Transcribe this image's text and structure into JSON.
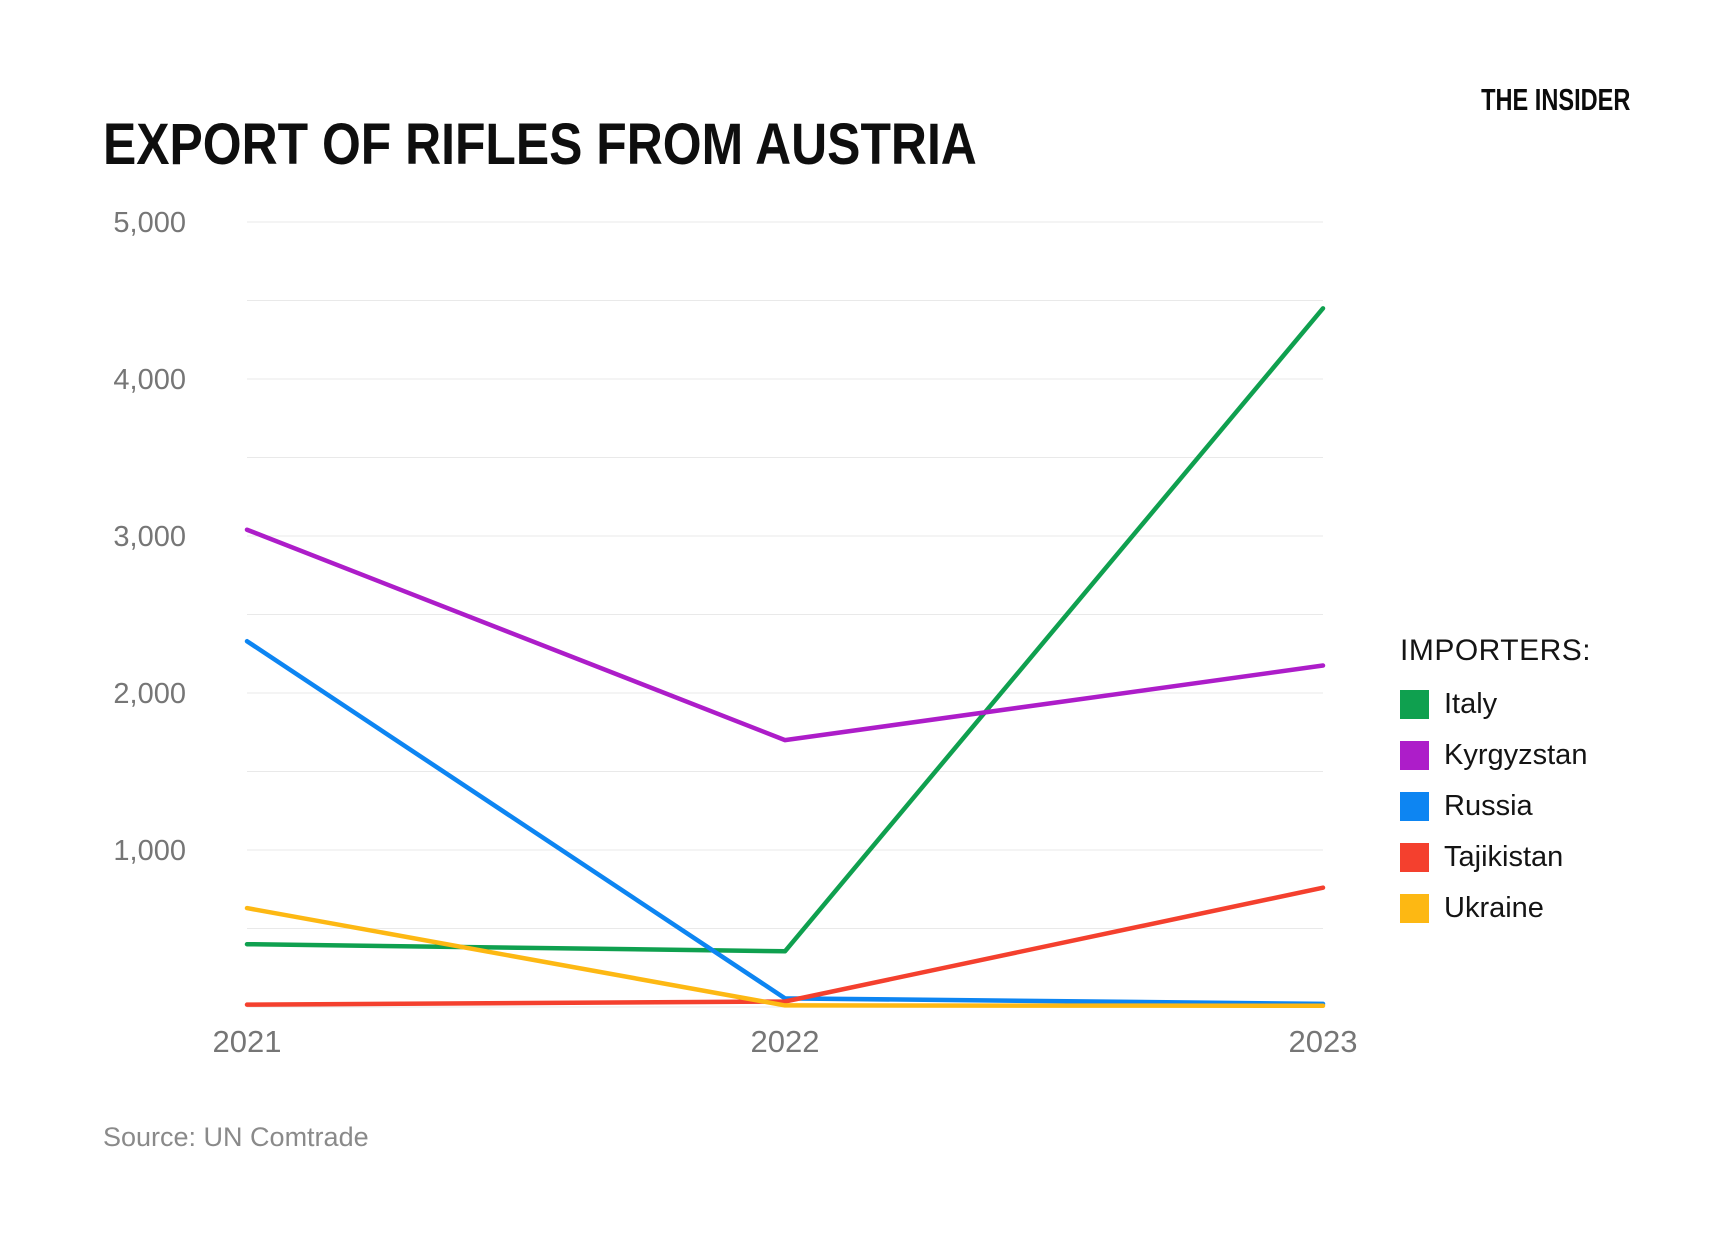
{
  "header": {
    "title": "EXPORT OF RIFLES FROM AUSTRIA",
    "brand": "THE INSIDER"
  },
  "legend": {
    "heading": "IMPORTERS:"
  },
  "footer": {
    "source": "Source: UN Comtrade"
  },
  "chart_data": {
    "type": "line",
    "title": "EXPORT OF RIFLES FROM AUSTRIA",
    "categories": [
      "2021",
      "2022",
      "2023"
    ],
    "series": [
      {
        "name": "Italy",
        "color": "#0fa04f",
        "values": [
          400,
          355,
          4450
        ]
      },
      {
        "name": "Kyrgyzstan",
        "color": "#ad1dc9",
        "values": [
          3040,
          1700,
          2175
        ]
      },
      {
        "name": "Russia",
        "color": "#0d85f2",
        "values": [
          2330,
          55,
          20
        ]
      },
      {
        "name": "Tajikistan",
        "color": "#f4402e",
        "values": [
          15,
          35,
          760
        ]
      },
      {
        "name": "Ukraine",
        "color": "#fdb813",
        "values": [
          630,
          10,
          8
        ]
      }
    ],
    "xlabel": "",
    "ylabel": "",
    "ylim": [
      0,
      5000
    ],
    "grid_step": 500,
    "label_step": 1000,
    "grid": true,
    "legend_position": "right"
  }
}
